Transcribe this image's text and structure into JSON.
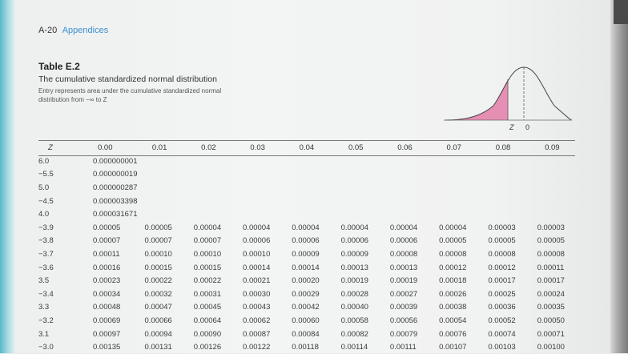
{
  "header": {
    "page_number": "A-20",
    "section": "Appendices"
  },
  "table": {
    "title": "Table E.2",
    "description": "The cumulative standardized normal distribution",
    "note": "Entry represents area under the cumulative standardized normal distribution from −∞ to Z",
    "figure_labels": {
      "z": "Z",
      "zero": "0"
    },
    "columns": [
      "Z",
      "0.00",
      "0.01",
      "0.02",
      "0.03",
      "0.04",
      "0.05",
      "0.06",
      "0.07",
      "0.08",
      "0.09"
    ],
    "rows": [
      {
        "z": "6.0",
        "values": [
          "0.000000001"
        ]
      },
      {
        "z": "−5.5",
        "values": [
          "0.000000019"
        ]
      },
      {
        "z": "5.0",
        "values": [
          "0.000000287"
        ]
      },
      {
        "z": "−4.5",
        "values": [
          "0.000003398"
        ]
      },
      {
        "z": "4.0",
        "values": [
          "0.000031671"
        ]
      },
      {
        "z": "−3.9",
        "values": [
          "0.00005",
          "0.00005",
          "0.00004",
          "0.00004",
          "0.00004",
          "0.00004",
          "0.00004",
          "0.00004",
          "0.00003",
          "0.00003"
        ]
      },
      {
        "z": "−3.8",
        "values": [
          "0.00007",
          "0.00007",
          "0.00007",
          "0.00006",
          "0.00006",
          "0.00006",
          "0.00006",
          "0.00005",
          "0.00005",
          "0.00005"
        ]
      },
      {
        "z": "−3.7",
        "values": [
          "0.00011",
          "0.00010",
          "0.00010",
          "0.00010",
          "0.00009",
          "0.00009",
          "0.00008",
          "0.00008",
          "0.00008",
          "0.00008"
        ]
      },
      {
        "z": "−3.6",
        "values": [
          "0.00016",
          "0.00015",
          "0.00015",
          "0.00014",
          "0.00014",
          "0.00013",
          "0.00013",
          "0.00012",
          "0.00012",
          "0.00011"
        ]
      },
      {
        "z": "3.5",
        "values": [
          "0.00023",
          "0.00022",
          "0.00022",
          "0.00021",
          "0.00020",
          "0.00019",
          "0.00019",
          "0.00018",
          "0.00017",
          "0.00017"
        ]
      },
      {
        "z": "−3.4",
        "values": [
          "0.00034",
          "0.00032",
          "0.00031",
          "0.00030",
          "0.00029",
          "0.00028",
          "0.00027",
          "0.00026",
          "0.00025",
          "0.00024"
        ]
      },
      {
        "z": "3.3",
        "values": [
          "0.00048",
          "0.00047",
          "0.00045",
          "0.00043",
          "0.00042",
          "0.00040",
          "0.00039",
          "0.00038",
          "0.00036",
          "0.00035"
        ]
      },
      {
        "z": "−3.2",
        "values": [
          "0.00069",
          "0.00066",
          "0.00064",
          "0.00062",
          "0.00060",
          "0.00058",
          "0.00056",
          "0.00054",
          "0.00052",
          "0.00050"
        ]
      },
      {
        "z": "3.1",
        "values": [
          "0.00097",
          "0.00094",
          "0.00090",
          "0.00087",
          "0.00084",
          "0.00082",
          "0.00079",
          "0.00076",
          "0.00074",
          "0.00071"
        ]
      },
      {
        "z": "−3.0",
        "values": [
          "0.00135",
          "0.00131",
          "0.00126",
          "0.00122",
          "0.00118",
          "0.00114",
          "0.00111",
          "0.00107",
          "0.00103",
          "0.00100"
        ]
      }
    ]
  },
  "colors": {
    "shaded_area": "#e58fb4",
    "header_link": "#3b8fd0"
  }
}
